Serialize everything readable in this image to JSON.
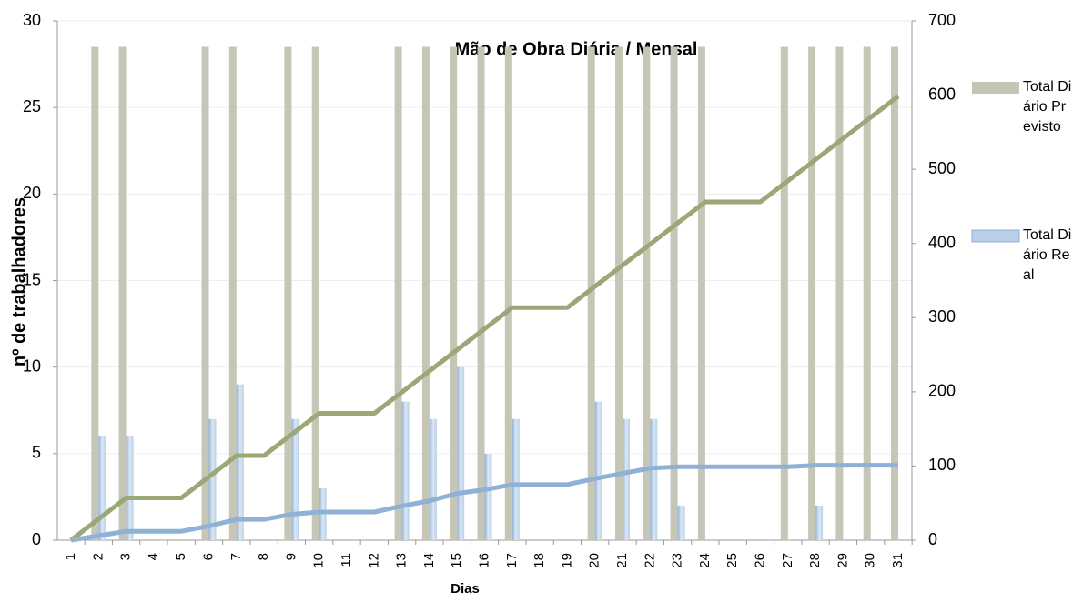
{
  "chart_data": {
    "type": "bar",
    "title": "Mão de Obra Diária / Mensal",
    "xlabel": "Dias",
    "ylabel": "nº de trabalhadores",
    "categories": [
      "1",
      "2",
      "3",
      "4",
      "5",
      "6",
      "7",
      "8",
      "9",
      "10",
      "11",
      "12",
      "13",
      "14",
      "15",
      "16",
      "17",
      "18",
      "19",
      "20",
      "21",
      "22",
      "23",
      "24",
      "25",
      "26",
      "27",
      "28",
      "29",
      "30",
      "31"
    ],
    "series": [
      {
        "name": "Total Diário Previsto",
        "type": "bar",
        "color": "#c5c6b6",
        "values": [
          0,
          28.5,
          28.5,
          0,
          0,
          28.5,
          28.5,
          0,
          28.5,
          28.5,
          0,
          0,
          28.5,
          28.5,
          28.5,
          28.5,
          28.5,
          0,
          0,
          28.5,
          28.5,
          28.5,
          28.5,
          28.5,
          0,
          0,
          28.5,
          28.5,
          28.5,
          28.5,
          28.5
        ]
      },
      {
        "name": "Total Diário Real",
        "type": "bar",
        "color": "#b9d0e6",
        "values": [
          0,
          6,
          6,
          0,
          0,
          7,
          9,
          0,
          7,
          3,
          0,
          0,
          8,
          7,
          10,
          5,
          7,
          0,
          0,
          8,
          7,
          7,
          2,
          0,
          0,
          0,
          0,
          2,
          0,
          0,
          0
        ]
      },
      {
        "type": "line",
        "axis": "y2",
        "color": "#9aa877",
        "values": [
          0,
          28.5,
          57,
          57,
          57,
          85.5,
          114,
          114,
          142.5,
          171,
          171,
          171,
          199.5,
          228,
          256.5,
          285,
          313.5,
          313.5,
          313.5,
          342,
          370.5,
          399,
          427.5,
          456,
          456,
          456,
          484.5,
          513,
          541.5,
          570,
          598.5
        ]
      },
      {
        "type": "line",
        "axis": "y2",
        "color": "#8fb1d5",
        "values": [
          0,
          6,
          12,
          12,
          12,
          19,
          28,
          28,
          35,
          38,
          38,
          38,
          46,
          53,
          63,
          68,
          75,
          75,
          75,
          83,
          90,
          97,
          99,
          99,
          99,
          99,
          99,
          101,
          101,
          101,
          101
        ]
      }
    ],
    "ylim": [
      0,
      30
    ],
    "yticks": [
      0,
      5,
      10,
      15,
      20,
      25,
      30
    ],
    "y2lim": [
      0,
      700
    ],
    "y2ticks": [
      0,
      100,
      200,
      300,
      400,
      500,
      600,
      700
    ],
    "grid": true,
    "legend": "right"
  }
}
